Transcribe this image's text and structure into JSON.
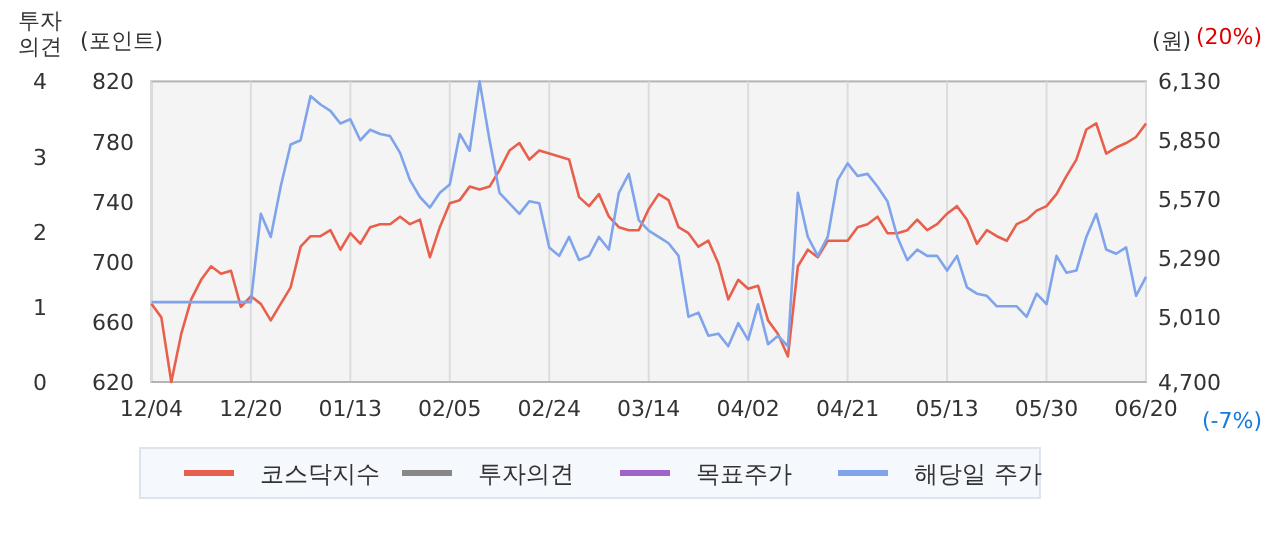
{
  "chart_data": {
    "type": "line",
    "ylabel": "(포인트)",
    "y2label": "(원)",
    "y3label": "투자의견",
    "categories": [
      "12/04",
      null,
      null,
      null,
      null,
      null,
      null,
      null,
      null,
      null,
      "12/20",
      null,
      null,
      null,
      null,
      null,
      null,
      null,
      null,
      null,
      "01/13",
      null,
      null,
      null,
      null,
      null,
      null,
      null,
      null,
      null,
      "02/05",
      null,
      null,
      null,
      null,
      null,
      null,
      null,
      null,
      null,
      "02/24",
      null,
      null,
      null,
      null,
      null,
      null,
      null,
      null,
      null,
      "03/14",
      null,
      null,
      null,
      null,
      null,
      null,
      null,
      null,
      null,
      "04/02",
      null,
      null,
      null,
      null,
      null,
      null,
      null,
      null,
      null,
      "04/21",
      null,
      null,
      null,
      null,
      null,
      null,
      null,
      null,
      null,
      "05/13",
      null,
      null,
      null,
      null,
      null,
      null,
      null,
      null,
      null,
      "05/30",
      null,
      null,
      null,
      null,
      null,
      null,
      null,
      null,
      null,
      "06/20"
    ],
    "ylim": [
      620,
      820
    ],
    "yticks": [
      620,
      660,
      700,
      740,
      780,
      820
    ],
    "y2lim": [
      4700,
      6130
    ],
    "y2ticks": [
      {
        "value": 4700,
        "label": "4,700"
      },
      {
        "value": 5010,
        "label": "5,010"
      },
      {
        "value": 5290,
        "label": "5,290"
      },
      {
        "value": 5570,
        "label": "5,570"
      },
      {
        "value": 5850,
        "label": "5,850"
      },
      {
        "value": 6130,
        "label": "6,130"
      }
    ],
    "y3lim": [
      0,
      4
    ],
    "y3ticks": [
      0,
      1,
      2,
      3,
      4
    ],
    "grid": "x",
    "legend": "bottom",
    "line_style": "solid",
    "marker": "none",
    "annotations": [
      "(20%)",
      "(-7%)"
    ],
    "series": [
      {
        "name": "코스닥지수",
        "color": "#e8604c",
        "values": [
          672,
          663,
          620,
          652,
          675,
          688,
          697,
          692,
          694,
          670,
          677,
          672,
          661,
          672,
          683,
          710,
          717,
          717,
          721,
          708,
          719,
          712,
          723,
          725,
          725,
          730,
          725,
          728,
          703,
          723,
          739,
          741,
          750,
          748,
          750,
          761,
          774,
          779,
          768,
          774,
          772,
          770,
          768,
          743,
          737,
          745,
          730,
          723,
          721,
          721,
          735,
          745,
          741,
          723,
          719,
          710,
          714,
          699,
          675,
          688,
          682,
          684,
          661,
          652,
          637,
          697,
          708,
          703,
          714,
          714,
          714,
          723,
          725,
          730,
          719,
          719,
          721,
          728,
          721,
          725,
          732,
          737,
          728,
          712,
          721,
          717,
          714,
          725,
          728,
          734,
          737,
          745,
          757,
          768,
          788,
          792,
          772,
          776,
          779,
          783,
          792
        ]
      },
      {
        "name": "투자의견",
        "color": "#888888",
        "axis": "y3",
        "values": [
          null,
          null,
          null,
          null,
          null,
          null,
          null,
          null,
          null,
          null,
          null,
          null,
          null,
          null,
          null,
          null,
          null,
          null,
          null,
          null,
          null,
          null,
          null,
          null,
          null,
          null,
          null,
          null,
          null,
          null,
          null,
          null,
          null,
          null,
          null,
          null,
          null,
          null,
          null,
          null,
          null,
          null,
          null,
          null,
          null,
          null,
          null,
          null,
          null,
          null,
          null,
          null,
          null,
          null,
          null,
          null,
          null,
          null,
          null,
          null,
          null,
          null,
          null,
          null,
          null,
          null,
          null,
          null,
          null,
          null,
          null,
          null,
          null,
          null,
          null,
          null,
          null,
          null,
          null,
          null,
          null,
          null,
          null,
          null,
          null,
          null,
          null,
          null,
          null,
          null,
          null,
          null,
          null,
          null,
          null,
          null,
          null,
          null,
          null,
          null,
          null
        ]
      },
      {
        "name": "목표주가",
        "color": "#a064c8",
        "axis": "y2",
        "values": [
          null,
          null,
          null,
          null,
          null,
          null,
          null,
          null,
          null,
          null,
          null,
          null,
          null,
          null,
          null,
          null,
          null,
          null,
          null,
          null,
          null,
          null,
          null,
          null,
          null,
          null,
          null,
          null,
          null,
          null,
          null,
          null,
          null,
          null,
          null,
          null,
          null,
          null,
          null,
          null,
          null,
          null,
          null,
          null,
          null,
          null,
          null,
          null,
          null,
          null,
          null,
          null,
          null,
          null,
          null,
          null,
          null,
          null,
          null,
          null,
          null,
          null,
          null,
          null,
          null,
          null,
          null,
          null,
          null,
          null,
          null,
          null,
          null,
          null,
          null,
          null,
          null,
          null,
          null,
          null,
          null,
          null,
          null,
          null,
          null,
          null,
          null,
          null,
          null,
          null,
          null,
          null,
          null,
          null,
          null,
          null,
          null,
          null,
          null,
          null,
          null
        ]
      },
      {
        "name": "해당일 주가",
        "color": "#7fa4ec",
        "axis": "y2",
        "values": [
          5080,
          5080,
          5080,
          5080,
          5080,
          5080,
          5080,
          5080,
          5080,
          5080,
          5080,
          5500,
          5390,
          5630,
          5830,
          5850,
          6060,
          6020,
          5990,
          5930,
          5950,
          5850,
          5900,
          5880,
          5870,
          5790,
          5660,
          5580,
          5530,
          5600,
          5640,
          5880,
          5800,
          6130,
          5850,
          5600,
          5550,
          5500,
          5560,
          5550,
          5340,
          5300,
          5390,
          5280,
          5300,
          5390,
          5330,
          5600,
          5690,
          5470,
          5420,
          5390,
          5360,
          5300,
          5010,
          5030,
          4920,
          4930,
          4870,
          4980,
          4900,
          5070,
          4880,
          4920,
          4870,
          5600,
          5390,
          5300,
          5390,
          5660,
          5740,
          5680,
          5690,
          5630,
          5560,
          5390,
          5280,
          5330,
          5300,
          5300,
          5230,
          5300,
          5150,
          5120,
          5110,
          5060,
          5060,
          5060,
          5010,
          5120,
          5070,
          5300,
          5220,
          5230,
          5390,
          5500,
          5330,
          5310,
          5340,
          5110,
          5200
        ]
      }
    ]
  }
}
